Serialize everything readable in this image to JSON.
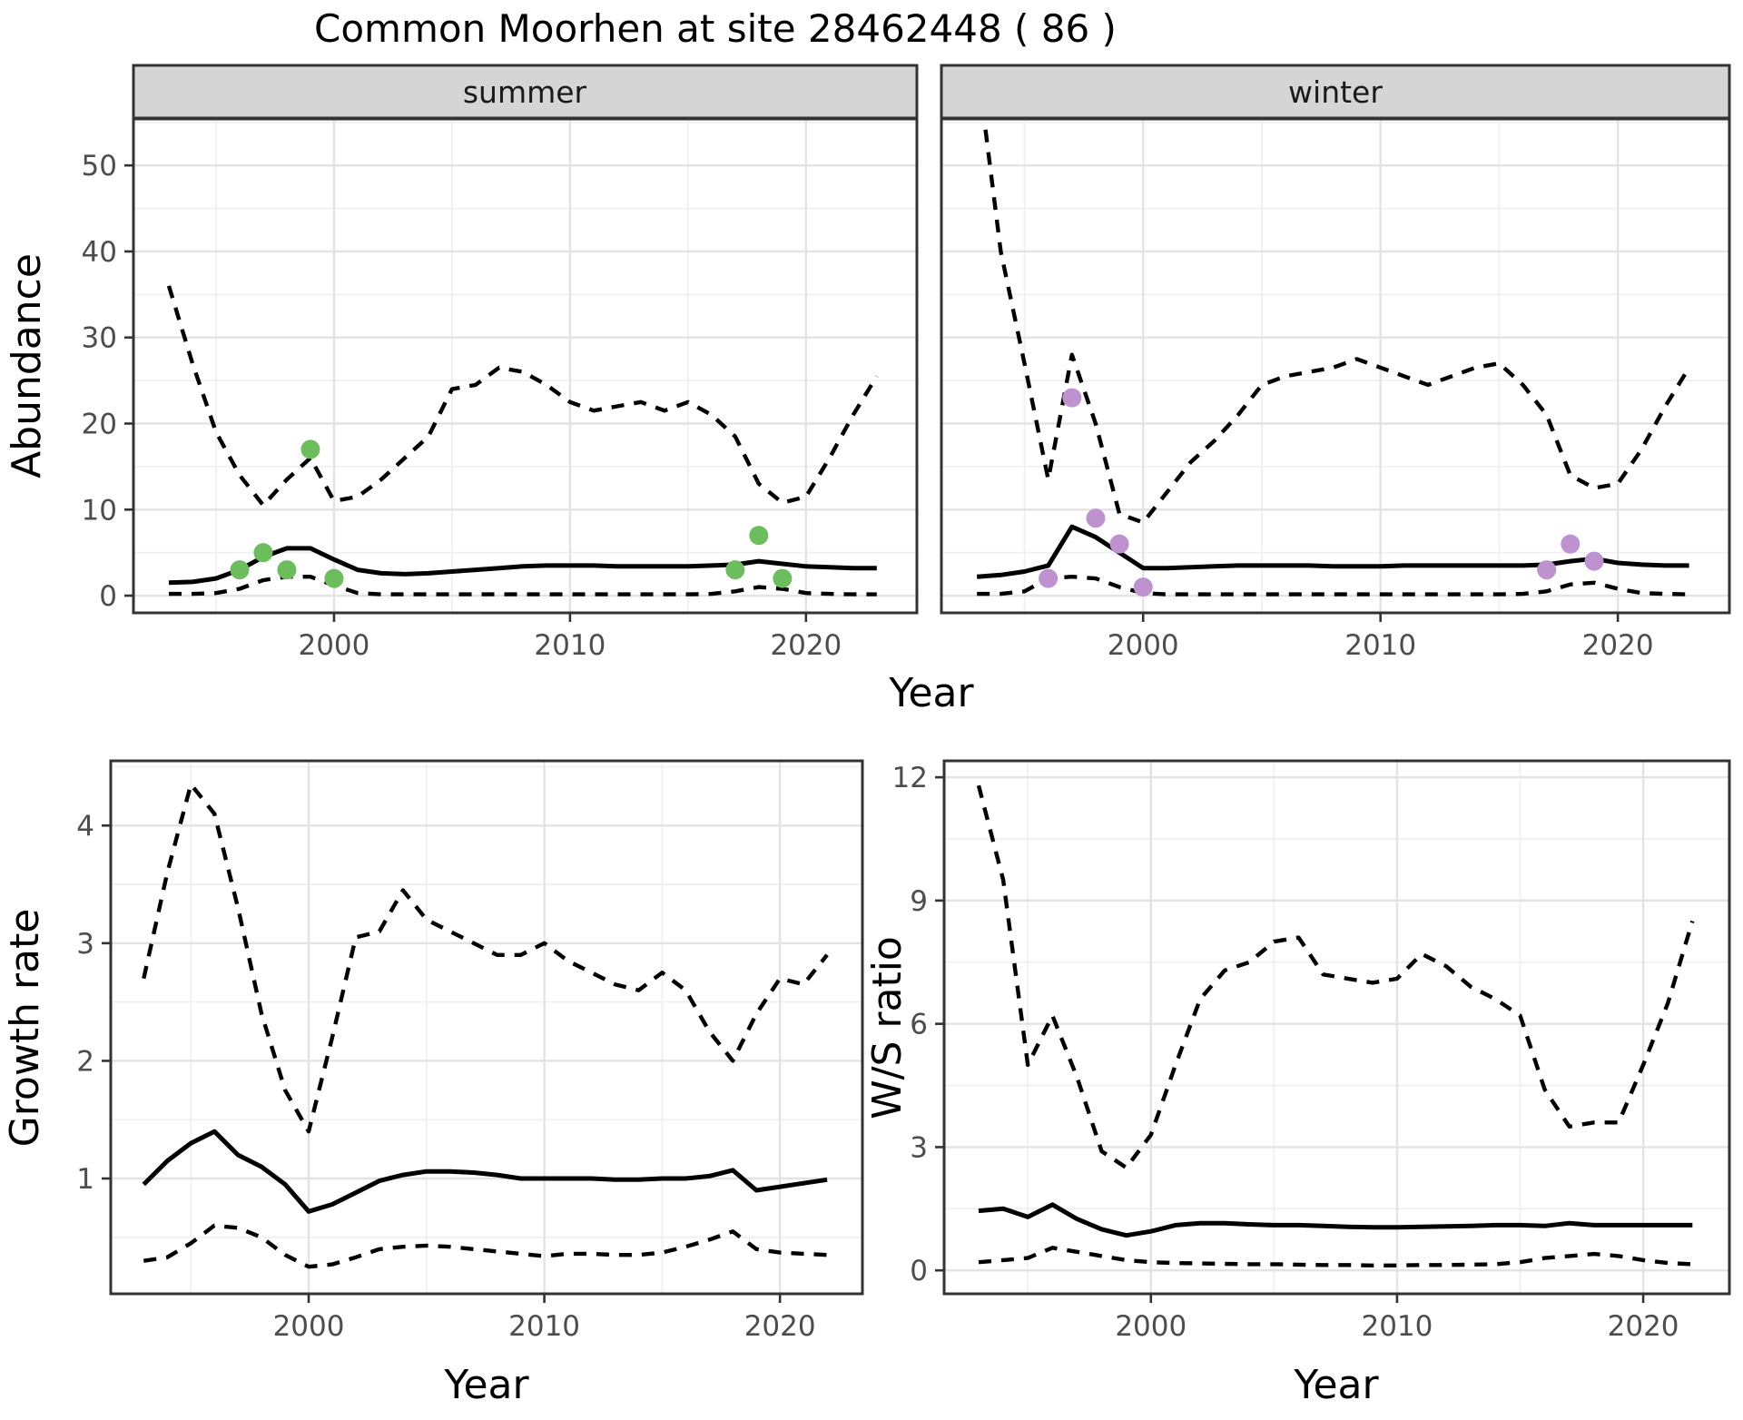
{
  "title": "Common Moorhen at site 28462448 ( 86 )",
  "facets": [
    {
      "label": "summer"
    },
    {
      "label": "winter"
    }
  ],
  "axes": {
    "abundance_label": "Abundance",
    "growth_label": "Growth rate",
    "ws_label": "W/S ratio",
    "year_label": "Year"
  },
  "colors": {
    "summer_points": "#6cbe5c",
    "winter_points": "#bd92cf",
    "line": "#000000",
    "panel_border": "#333333",
    "strip_fill": "#d5d5d5",
    "grid_major": "#e3e3e3",
    "grid_minor": "#f0f0f0",
    "tick_text": "#4d4d4d"
  },
  "chart_data": [
    {
      "id": "abundance-summer",
      "type": "line",
      "facet": "summer",
      "ylabel": "Abundance",
      "xlabel": "Year",
      "xlim": [
        1991.5,
        2024.7
      ],
      "ylim": [
        -2,
        55.4
      ],
      "xticks": [
        2000,
        2010,
        2020
      ],
      "yticks": [
        0,
        10,
        20,
        30,
        40,
        50
      ],
      "x": [
        1993,
        1994,
        1995,
        1996,
        1997,
        1998,
        1999,
        2000,
        2001,
        2002,
        2003,
        2004,
        2005,
        2006,
        2007,
        2008,
        2009,
        2010,
        2011,
        2012,
        2013,
        2014,
        2015,
        2016,
        2017,
        2018,
        2019,
        2020,
        2021,
        2022,
        2023
      ],
      "series": [
        {
          "name": "upper 95% CI",
          "style": "dashed",
          "values": [
            36,
            27,
            19,
            14,
            10.5,
            13.5,
            16,
            11,
            11.5,
            13.5,
            16,
            18.5,
            24,
            24.5,
            26.5,
            26,
            24.5,
            22.5,
            21.5,
            22,
            22.5,
            21.5,
            22.5,
            21,
            18.5,
            13,
            10.8,
            11.5,
            16,
            21,
            25.5
          ]
        },
        {
          "name": "median",
          "style": "solid",
          "values": [
            1.5,
            1.6,
            2,
            3,
            4.5,
            5.5,
            5.5,
            4.2,
            3,
            2.6,
            2.5,
            2.6,
            2.8,
            3,
            3.2,
            3.4,
            3.5,
            3.5,
            3.5,
            3.4,
            3.4,
            3.4,
            3.4,
            3.5,
            3.6,
            4,
            3.7,
            3.4,
            3.3,
            3.2,
            3.2
          ]
        },
        {
          "name": "lower 95% CI",
          "style": "dashed",
          "values": [
            0.2,
            0.2,
            0.3,
            0.8,
            1.8,
            2.2,
            2.2,
            1.2,
            0.3,
            0.15,
            0.15,
            0.15,
            0.15,
            0.15,
            0.15,
            0.15,
            0.15,
            0.15,
            0.15,
            0.15,
            0.15,
            0.15,
            0.15,
            0.2,
            0.5,
            1,
            0.8,
            0.3,
            0.2,
            0.15,
            0.15
          ]
        }
      ],
      "points": {
        "name": "observed counts",
        "color": "#6cbe5c",
        "data": [
          [
            1996,
            3
          ],
          [
            1997,
            5
          ],
          [
            1998,
            3
          ],
          [
            1999,
            17
          ],
          [
            2000,
            2
          ],
          [
            2017,
            3
          ],
          [
            2018,
            7
          ],
          [
            2019,
            2
          ]
        ]
      }
    },
    {
      "id": "abundance-winter",
      "type": "line",
      "facet": "winter",
      "ylabel": "Abundance",
      "xlabel": "Year",
      "xlim": [
        1991.5,
        2024.7
      ],
      "ylim": [
        -2,
        55.4
      ],
      "xticks": [
        2000,
        2010,
        2020
      ],
      "yticks": [
        0,
        10,
        20,
        30,
        40,
        50
      ],
      "x": [
        1993,
        1994,
        1995,
        1996,
        1997,
        1998,
        1999,
        2000,
        2001,
        2002,
        2003,
        2004,
        2005,
        2006,
        2007,
        2008,
        2009,
        2010,
        2011,
        2012,
        2013,
        2014,
        2015,
        2016,
        2017,
        2018,
        2019,
        2020,
        2021,
        2022,
        2023
      ],
      "series": [
        {
          "name": "upper 95% CI",
          "style": "dashed",
          "values": [
            62,
            40,
            27,
            13.5,
            28,
            20,
            9.5,
            8.5,
            12,
            15.5,
            18,
            21,
            24.5,
            25.5,
            26,
            26.5,
            27.5,
            26.5,
            25.5,
            24.5,
            25.5,
            26.5,
            27,
            24.5,
            21,
            14,
            12.5,
            13,
            17,
            22,
            26.5
          ]
        },
        {
          "name": "median",
          "style": "solid",
          "values": [
            2.2,
            2.4,
            2.8,
            3.5,
            8,
            6.8,
            5,
            3.2,
            3.2,
            3.3,
            3.4,
            3.5,
            3.5,
            3.5,
            3.5,
            3.4,
            3.4,
            3.4,
            3.5,
            3.5,
            3.5,
            3.5,
            3.5,
            3.5,
            3.6,
            4,
            4.3,
            3.8,
            3.6,
            3.5,
            3.5
          ]
        },
        {
          "name": "lower 95% CI",
          "style": "dashed",
          "values": [
            0.2,
            0.2,
            0.5,
            2,
            2.2,
            2,
            1,
            0.3,
            0.15,
            0.15,
            0.15,
            0.15,
            0.15,
            0.15,
            0.15,
            0.15,
            0.15,
            0.15,
            0.15,
            0.15,
            0.15,
            0.15,
            0.15,
            0.2,
            0.5,
            1.3,
            1.5,
            0.8,
            0.3,
            0.2,
            0.15
          ]
        }
      ],
      "points": {
        "name": "observed counts",
        "color": "#bd92cf",
        "data": [
          [
            1996,
            2
          ],
          [
            1997,
            23
          ],
          [
            1998,
            9
          ],
          [
            1999,
            6
          ],
          [
            2000,
            1
          ],
          [
            2017,
            3
          ],
          [
            2018,
            6
          ],
          [
            2019,
            4
          ]
        ]
      }
    },
    {
      "id": "growth-rate",
      "type": "line",
      "facet": null,
      "ylabel": "Growth rate",
      "xlabel": "Year",
      "xlim": [
        1991.6,
        2023.5
      ],
      "ylim": [
        0.02,
        4.55
      ],
      "xticks": [
        2000,
        2010,
        2020
      ],
      "yticks": [
        1,
        2,
        3,
        4
      ],
      "x": [
        1993,
        1994,
        1995,
        1996,
        1997,
        1998,
        1999,
        2000,
        2001,
        2002,
        2003,
        2004,
        2005,
        2006,
        2007,
        2008,
        2009,
        2010,
        2011,
        2012,
        2013,
        2014,
        2015,
        2016,
        2017,
        2018,
        2019,
        2020,
        2021,
        2022
      ],
      "series": [
        {
          "name": "upper 95% CI",
          "style": "dashed",
          "values": [
            2.7,
            3.6,
            4.35,
            4.1,
            3.3,
            2.4,
            1.75,
            1.4,
            2.2,
            3.05,
            3.1,
            3.45,
            3.2,
            3.1,
            3,
            2.9,
            2.9,
            3,
            2.85,
            2.75,
            2.65,
            2.6,
            2.75,
            2.6,
            2.25,
            2,
            2.4,
            2.7,
            2.65,
            2.9
          ]
        },
        {
          "name": "median",
          "style": "solid",
          "values": [
            0.95,
            1.15,
            1.3,
            1.4,
            1.2,
            1.1,
            0.95,
            0.72,
            0.78,
            0.88,
            0.98,
            1.03,
            1.06,
            1.06,
            1.05,
            1.03,
            1,
            1,
            1,
            1,
            0.99,
            0.99,
            1,
            1,
            1.02,
            1.07,
            0.9,
            0.93,
            0.96,
            0.99
          ]
        },
        {
          "name": "lower 95% CI",
          "style": "dashed",
          "values": [
            0.3,
            0.33,
            0.45,
            0.6,
            0.58,
            0.5,
            0.35,
            0.25,
            0.27,
            0.33,
            0.4,
            0.42,
            0.43,
            0.42,
            0.4,
            0.38,
            0.36,
            0.34,
            0.36,
            0.36,
            0.35,
            0.35,
            0.37,
            0.42,
            0.48,
            0.55,
            0.4,
            0.37,
            0.36,
            0.35
          ]
        }
      ],
      "points": null
    },
    {
      "id": "ws-ratio",
      "type": "line",
      "facet": null,
      "ylabel": "W/S ratio",
      "xlabel": "Year",
      "xlim": [
        1991.6,
        2023.5
      ],
      "ylim": [
        -0.57,
        12.4
      ],
      "xticks": [
        2000,
        2010,
        2020
      ],
      "yticks": [
        0,
        3,
        6,
        9,
        12
      ],
      "x": [
        1993,
        1994,
        1995,
        1996,
        1997,
        1998,
        1999,
        2000,
        2001,
        2002,
        2003,
        2004,
        2005,
        2006,
        2007,
        2008,
        2009,
        2010,
        2011,
        2012,
        2013,
        2014,
        2015,
        2016,
        2017,
        2018,
        2019,
        2020,
        2021,
        2022
      ],
      "series": [
        {
          "name": "upper 95% CI",
          "style": "dashed",
          "values": [
            11.8,
            9.5,
            5,
            6.2,
            4.7,
            2.9,
            2.5,
            3.3,
            5,
            6.6,
            7.3,
            7.5,
            8,
            8.1,
            7.2,
            7.1,
            7,
            7.1,
            7.7,
            7.4,
            6.9,
            6.6,
            6.2,
            4.4,
            3.5,
            3.6,
            3.6,
            5,
            6.5,
            8.5
          ]
        },
        {
          "name": "median",
          "style": "solid",
          "values": [
            1.45,
            1.5,
            1.3,
            1.6,
            1.25,
            1,
            0.85,
            0.95,
            1.1,
            1.15,
            1.15,
            1.12,
            1.1,
            1.1,
            1.08,
            1.06,
            1.05,
            1.05,
            1.06,
            1.07,
            1.08,
            1.1,
            1.1,
            1.08,
            1.15,
            1.1,
            1.1,
            1.1,
            1.1,
            1.1
          ]
        },
        {
          "name": "lower 95% CI",
          "style": "dashed",
          "values": [
            0.2,
            0.25,
            0.3,
            0.55,
            0.45,
            0.35,
            0.25,
            0.2,
            0.18,
            0.17,
            0.16,
            0.15,
            0.15,
            0.14,
            0.13,
            0.13,
            0.12,
            0.12,
            0.13,
            0.13,
            0.14,
            0.15,
            0.2,
            0.3,
            0.35,
            0.4,
            0.35,
            0.25,
            0.18,
            0.15
          ]
        }
      ],
      "points": null
    }
  ]
}
